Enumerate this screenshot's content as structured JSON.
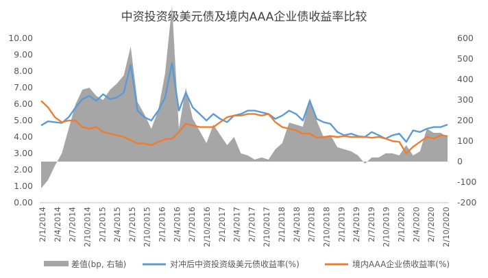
{
  "chart_data": {
    "type": "line",
    "title": "中资投资级美元债及境内AAA企业债收益率比较",
    "x_ticks": [
      "2/1/2014",
      "2/4/2014",
      "2/7/2014",
      "2/10/2014",
      "2/1/2015",
      "2/4/2015",
      "2/7/2015",
      "2/10/2015",
      "2/1/2016",
      "2/4/2016",
      "2/7/2016",
      "2/10/2016",
      "2/1/2017",
      "2/4/2017",
      "2/7/2017",
      "2/10/2017",
      "2/1/2018",
      "2/4/2018",
      "2/7/2018",
      "2/10/2018",
      "2/1/2019",
      "2/4/2019",
      "2/7/2019",
      "2/10/2019",
      "2/1/2020",
      "2/4/2020",
      "2/7/2020",
      "2/10/2020"
    ],
    "y_left": {
      "min": 0,
      "max": 10,
      "step": 1,
      "ticks": [
        "0.00",
        "1.00",
        "2.00",
        "3.00",
        "4.00",
        "5.00",
        "6.00",
        "7.00",
        "8.00",
        "9.00",
        "10.00"
      ]
    },
    "y_right": {
      "min": -200,
      "max": 600,
      "step": 100,
      "ticks": [
        "-200",
        "-100",
        "0",
        "100",
        "200",
        "300",
        "400",
        "500",
        "600"
      ]
    },
    "series": [
      {
        "name": "差值(bp, 右轴)",
        "type": "area",
        "axis": "right",
        "color": "#a6a6a6",
        "values": [
          -130,
          -90,
          -20,
          40,
          160,
          280,
          350,
          360,
          320,
          300,
          350,
          380,
          420,
          560,
          290,
          230,
          160,
          250,
          430,
          760,
          160,
          360,
          210,
          150,
          90,
          180,
          130,
          80,
          120,
          40,
          30,
          10,
          20,
          10,
          60,
          90,
          190,
          180,
          170,
          310,
          200,
          120,
          130,
          70,
          60,
          50,
          30,
          -10,
          20,
          20,
          40,
          40,
          30,
          80,
          30,
          50,
          160,
          140,
          140,
          120
        ]
      },
      {
        "name": "对冲后中资投资级美元债收益率(%)",
        "type": "line",
        "axis": "left",
        "color": "#5b9bd5",
        "values": [
          4.7,
          4.95,
          4.9,
          4.85,
          5.2,
          5.8,
          6.3,
          6.5,
          6.2,
          6.6,
          6.3,
          6.4,
          6.7,
          8.4,
          5.6,
          5.2,
          5.0,
          5.6,
          6.4,
          8.5,
          5.6,
          6.7,
          5.8,
          5.4,
          5.0,
          5.4,
          5.1,
          4.9,
          5.3,
          5.4,
          5.6,
          5.6,
          5.5,
          5.4,
          5.1,
          5.3,
          5.6,
          5.4,
          5.0,
          6.2,
          5.1,
          4.9,
          4.8,
          4.3,
          4.1,
          4.2,
          4.05,
          4.0,
          4.3,
          4.1,
          3.9,
          4.1,
          4.2,
          3.7,
          4.4,
          4.3,
          4.5,
          4.6,
          4.6,
          4.75
        ]
      },
      {
        "name": "境内AAA企业债收益率(%)",
        "type": "line",
        "axis": "left",
        "color": "#ed7d31",
        "values": [
          6.2,
          5.8,
          5.2,
          4.9,
          5.0,
          5.0,
          4.6,
          4.5,
          4.6,
          4.3,
          4.2,
          4.1,
          4.0,
          3.8,
          3.6,
          3.6,
          3.5,
          3.7,
          3.85,
          3.9,
          4.3,
          4.8,
          4.7,
          4.6,
          4.6,
          4.6,
          4.9,
          5.2,
          5.3,
          5.3,
          5.4,
          5.4,
          5.3,
          5.4,
          4.9,
          4.6,
          4.5,
          4.4,
          4.2,
          4.2,
          3.95,
          4.0,
          4.05,
          4.0,
          4.05,
          4.0,
          4.0,
          4.0,
          3.95,
          4.0,
          3.9,
          3.75,
          3.7,
          3.0,
          3.4,
          3.7,
          4.0,
          3.9,
          4.1,
          4.05
        ]
      }
    ],
    "legend_position": "bottom",
    "grid": false
  }
}
